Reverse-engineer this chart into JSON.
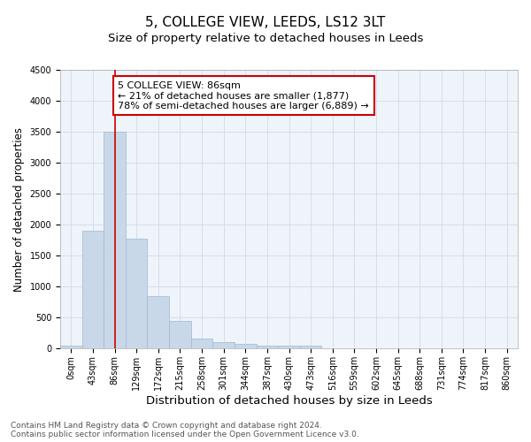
{
  "title": "5, COLLEGE VIEW, LEEDS, LS12 3LT",
  "subtitle": "Size of property relative to detached houses in Leeds",
  "xlabel": "Distribution of detached houses by size in Leeds",
  "ylabel": "Number of detached properties",
  "categories": [
    "0sqm",
    "43sqm",
    "86sqm",
    "129sqm",
    "172sqm",
    "215sqm",
    "258sqm",
    "301sqm",
    "344sqm",
    "387sqm",
    "430sqm",
    "473sqm",
    "516sqm",
    "559sqm",
    "602sqm",
    "645sqm",
    "688sqm",
    "731sqm",
    "774sqm",
    "817sqm",
    "860sqm"
  ],
  "values": [
    50,
    1900,
    3500,
    1770,
    850,
    450,
    170,
    105,
    80,
    55,
    45,
    50,
    0,
    0,
    0,
    0,
    0,
    0,
    0,
    0,
    0
  ],
  "bar_color": "#c8d8e8",
  "bar_edgecolor": "#a0b8d0",
  "vline_x": 2,
  "vline_color": "#cc0000",
  "annotation_text": "5 COLLEGE VIEW: 86sqm\n← 21% of detached houses are smaller (1,877)\n78% of semi-detached houses are larger (6,889) →",
  "annotation_box_color": "white",
  "annotation_box_edgecolor": "#cc0000",
  "ylim": [
    0,
    4500
  ],
  "yticks": [
    0,
    500,
    1000,
    1500,
    2000,
    2500,
    3000,
    3500,
    4000,
    4500
  ],
  "footnote1": "Contains HM Land Registry data © Crown copyright and database right 2024.",
  "footnote2": "Contains public sector information licensed under the Open Government Licence v3.0.",
  "title_fontsize": 11,
  "subtitle_fontsize": 9.5,
  "xlabel_fontsize": 9.5,
  "ylabel_fontsize": 8.5,
  "tick_fontsize": 7,
  "annotation_fontsize": 8,
  "footnote_fontsize": 6.5,
  "grid_color": "#d0dce8",
  "bg_color": "#eef4fa"
}
